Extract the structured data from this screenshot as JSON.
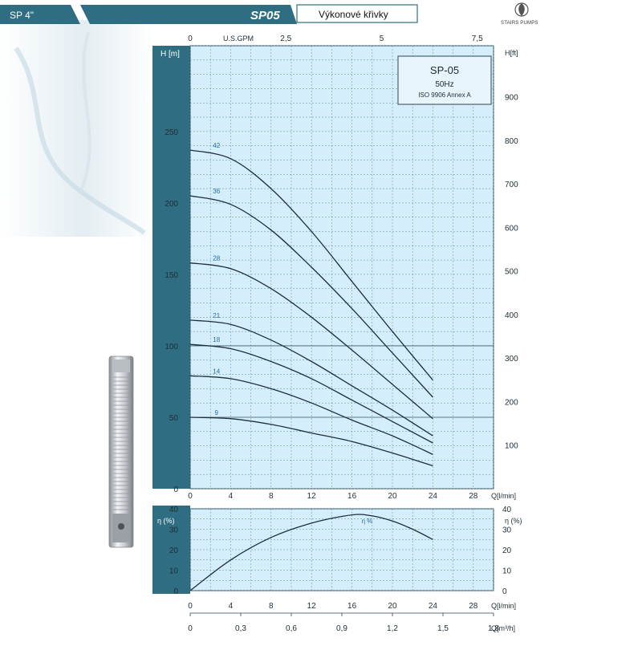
{
  "header": {
    "series_tab": "SP 4\"",
    "model_tab": "SP05",
    "title": "Výkonové křivky",
    "logo_text": "STAIRS PUMPS"
  },
  "legend_box": {
    "model": "SP-05",
    "frequency": "50Hz",
    "standard": "ISO 9906 Annex A"
  },
  "colors": {
    "dark_band": "#2f6e82",
    "plot_bg": "#d5eefb",
    "grid": "#5a8aa4",
    "curve": "#1e2f3a",
    "label": "#2a6f9c"
  },
  "chart_data": [
    {
      "type": "line",
      "x_top_label": "U.S.GPM",
      "x_top_ticks": [
        "0",
        "2,5",
        "5",
        "7,5"
      ],
      "x_bottom_label": "Q[l/min]",
      "x_ticks": [
        "0",
        "4",
        "8",
        "12",
        "16",
        "20",
        "24",
        "28"
      ],
      "xlim": [
        0,
        30
      ],
      "ylabel_left": "H [m]",
      "ylim": [
        0,
        310
      ],
      "y_left_ticks": [
        "0",
        "50",
        "100",
        "150",
        "200",
        "250"
      ],
      "ylabel_right": "H[ft]",
      "y_right_ticks": [
        "100",
        "200",
        "300",
        "400",
        "500",
        "600",
        "700",
        "800",
        "900"
      ],
      "series": [
        {
          "name": "42",
          "x": [
            0,
            4,
            8,
            12,
            16,
            20,
            24
          ],
          "values": [
            237,
            231,
            210,
            180,
            145,
            110,
            76
          ]
        },
        {
          "name": "36",
          "x": [
            0,
            4,
            8,
            12,
            16,
            20,
            24
          ],
          "values": [
            205,
            199,
            181,
            155,
            126,
            95,
            64
          ]
        },
        {
          "name": "28",
          "x": [
            0,
            4,
            8,
            12,
            16,
            20,
            24
          ],
          "values": [
            158,
            154,
            140,
            120,
            97,
            73,
            49
          ]
        },
        {
          "name": "21",
          "x": [
            0,
            4,
            8,
            12,
            16,
            20,
            24
          ],
          "values": [
            118,
            115,
            104,
            89,
            72,
            55,
            37
          ]
        },
        {
          "name": "18",
          "x": [
            0,
            4,
            8,
            12,
            16,
            20,
            24
          ],
          "values": [
            101,
            98,
            89,
            77,
            62,
            47,
            32
          ]
        },
        {
          "name": "14",
          "x": [
            0,
            4,
            8,
            12,
            16,
            20,
            24
          ],
          "values": [
            79,
            77,
            70,
            60,
            48,
            37,
            24
          ]
        },
        {
          "name": "9",
          "x": [
            0,
            4,
            8,
            12,
            16,
            20,
            24
          ],
          "values": [
            50,
            49,
            45,
            39,
            33,
            25,
            16
          ]
        }
      ]
    },
    {
      "type": "line",
      "ylabel_left": "η (%)",
      "ylabel_right": "η (%)",
      "ylim": [
        0,
        40
      ],
      "y_ticks": [
        "0",
        "10",
        "20",
        "30",
        "40"
      ],
      "x_bottom_label": "Q[l/min]",
      "x_ticks": [
        "0",
        "4",
        "8",
        "12",
        "16",
        "20",
        "24",
        "28"
      ],
      "xlim": [
        0,
        30
      ],
      "x_bottom2_label": "Q[m³/h]",
      "x_bottom2_ticks": [
        "0",
        "0,3",
        "0,6",
        "0,9",
        "1,2",
        "1,5",
        "1,8"
      ],
      "series": [
        {
          "name": "η %",
          "x": [
            0,
            4,
            8,
            12,
            16,
            18,
            20,
            22,
            24
          ],
          "values": [
            0,
            15,
            26,
            33,
            37,
            36.5,
            34,
            30,
            25
          ]
        }
      ]
    }
  ]
}
